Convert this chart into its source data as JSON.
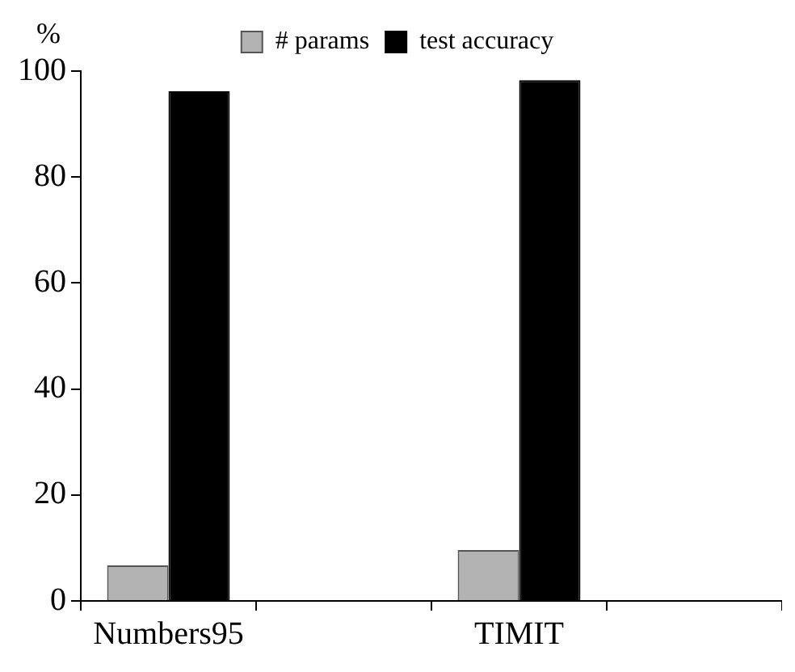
{
  "chart_data": {
    "type": "bar",
    "ylabel": "%",
    "categories": [
      "Numbers95",
      null,
      "TIMIT",
      null
    ],
    "series": [
      {
        "name": "# params",
        "color": "#b3b3b3",
        "values": [
          6.7,
          null,
          9.6,
          null
        ]
      },
      {
        "name": "test accuracy",
        "color": "#000000",
        "values": [
          96.2,
          null,
          98.3,
          null
        ]
      }
    ],
    "ylim": [
      0,
      100
    ],
    "yticks": [
      0,
      20,
      40,
      60,
      80,
      100
    ],
    "grid": false,
    "legend": "top"
  }
}
